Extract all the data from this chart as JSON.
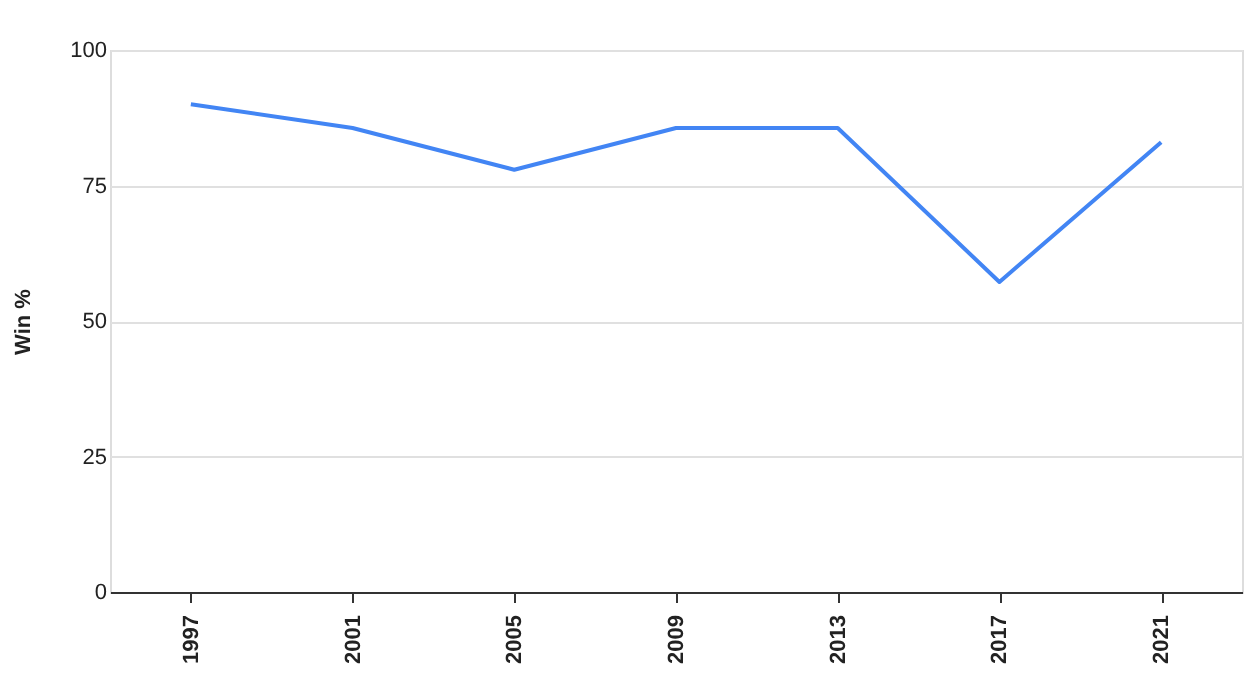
{
  "chart_data": {
    "type": "line",
    "ylabel": "Win %",
    "categories": [
      "1997",
      "2001",
      "2005",
      "2009",
      "2013",
      "2017",
      "2021"
    ],
    "series": [
      {
        "color": "#4285f4",
        "values": [
          90,
          85.6,
          77.9,
          85.6,
          85.6,
          57.2,
          83
        ]
      }
    ],
    "ylim": [
      0,
      100
    ],
    "yticks": [
      0,
      25,
      50,
      75,
      100
    ],
    "grid": "y",
    "marker": "none",
    "line_style": "solid"
  }
}
